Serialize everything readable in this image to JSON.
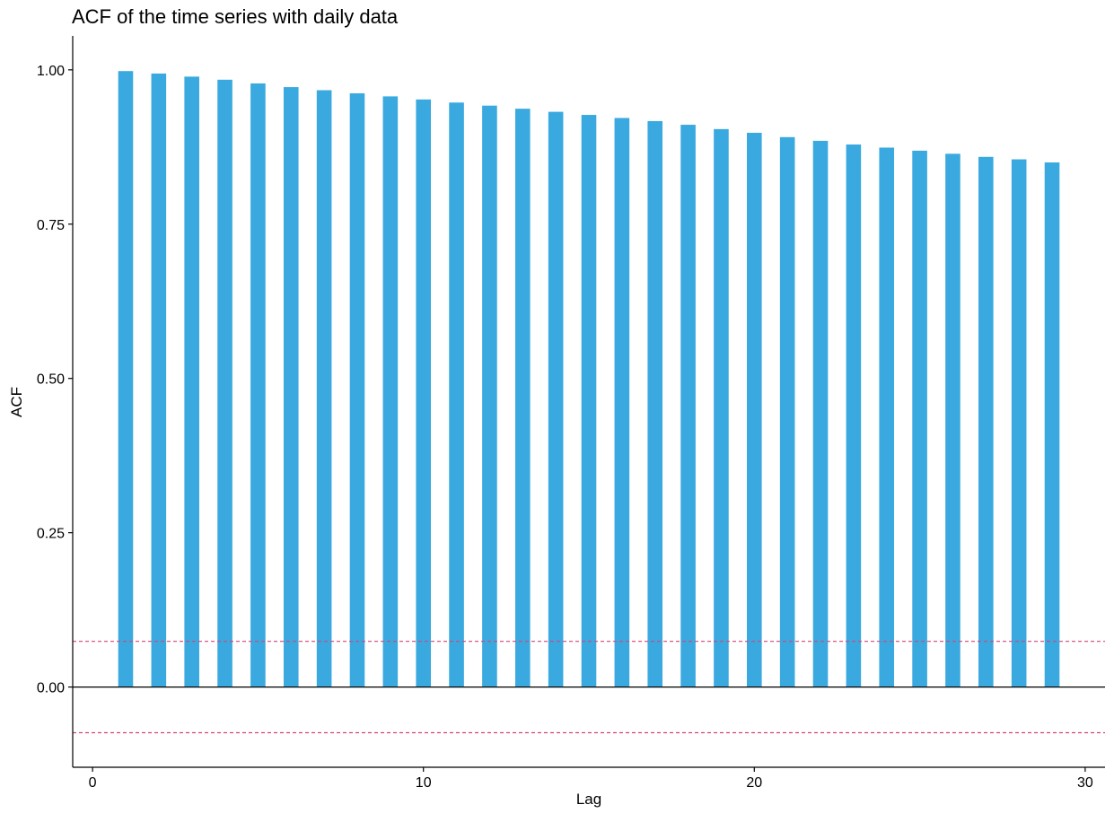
{
  "chart_data": {
    "type": "bar",
    "title": "ACF of the time series with daily data",
    "xlabel": "Lag",
    "ylabel": "ACF",
    "xlim": [
      -0.6,
      30.6
    ],
    "ylim": [
      -0.13,
      1.055
    ],
    "x_ticks": [
      0,
      10,
      20,
      30
    ],
    "x_tick_labels": [
      "0",
      "10",
      "20",
      "30"
    ],
    "y_ticks": [
      0,
      0.25,
      0.5,
      0.75,
      1.0
    ],
    "y_tick_labels": [
      "0.00",
      "0.25",
      "0.50",
      "0.75",
      "1.00"
    ],
    "lags": [
      1,
      2,
      3,
      4,
      5,
      6,
      7,
      8,
      9,
      10,
      11,
      12,
      13,
      14,
      15,
      16,
      17,
      18,
      19,
      20,
      21,
      22,
      23,
      24,
      25,
      26,
      27,
      28,
      29
    ],
    "values": [
      0.998,
      0.994,
      0.989,
      0.984,
      0.978,
      0.972,
      0.967,
      0.962,
      0.957,
      0.952,
      0.947,
      0.942,
      0.937,
      0.932,
      0.927,
      0.922,
      0.917,
      0.911,
      0.904,
      0.898,
      0.891,
      0.885,
      0.879,
      0.874,
      0.869,
      0.864,
      0.859,
      0.855,
      0.85
    ],
    "confidence_bound": 0.074,
    "grid": false,
    "colors": {
      "bar": "#3aa9df",
      "ci_line": "#d3457a",
      "axis": "#000000"
    }
  }
}
